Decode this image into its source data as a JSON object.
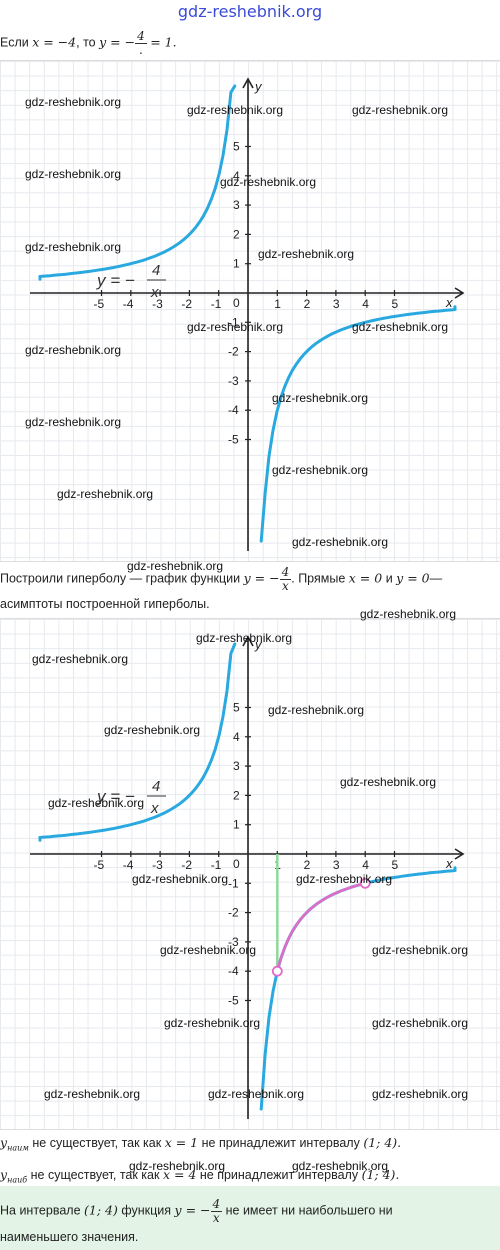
{
  "header_watermark": "gdz-reshebnik.org",
  "watermark_text": "gdz-reshebnik.org",
  "line1": {
    "prefix": "Если",
    "cond": "x = −4",
    "mid": ", то",
    "lhs": "y = −",
    "num": "4",
    "den": ".",
    "rhs": "= 1."
  },
  "text2": {
    "a": "Построили гиперболу — график функции",
    "lhs": "y = −",
    "num": "4",
    "den": "x",
    "b": ". Прямые",
    "m1": "x = 0",
    "c": "и",
    "m2": "y = 0",
    "d": "—",
    "line2": "асимптоты построенной гиперболы."
  },
  "text3": {
    "sub1": "y",
    "sub1_idx": "наим",
    "t1": "не существует, так как",
    "m1": "x = 1",
    "t2": "не принадлежит интервалу",
    "i1": "(1;  4).",
    "sub2": "y",
    "sub2_idx": "наиб",
    "t3": "не существует, так как",
    "m2": "x = 4",
    "t4": "не принадлежит интервалу",
    "i2": "(1;  4)."
  },
  "conclusion": {
    "a": "На интервале",
    "interval": "(1;  4)",
    "b": "функция",
    "lhs": "y = −",
    "num": "4",
    "den": "x",
    "c": "не имеет ни наибольшего ни",
    "line2": "наименьшего значения."
  },
  "graph_labels": {
    "x_axis": "x",
    "y_axis": "y",
    "origin": "0",
    "x_ticks": [
      "-5",
      "-4",
      "-3",
      "-2",
      "-1",
      "1",
      "2",
      "3",
      "4",
      "5"
    ],
    "y_ticks_pos": [
      "1",
      "2",
      "3",
      "4",
      "5"
    ],
    "y_ticks_neg": [
      "-1",
      "-2",
      "-3",
      "-4",
      "-5"
    ],
    "formula_lhs": "y = −",
    "formula_num": "4",
    "formula_den": "x"
  },
  "chart_data": [
    {
      "type": "line",
      "function": "y = -4/x",
      "xlim": [
        -6.5,
        7.5
      ],
      "ylim": [
        -7,
        7
      ],
      "series": [
        {
          "x": [
            -8.5,
            -6,
            -5,
            -4,
            -3,
            -2,
            -1.5,
            -1,
            -0.7,
            -0.45
          ],
          "y": [
            0.47,
            0.67,
            0.8,
            1,
            1.33,
            2,
            2.67,
            4,
            5.7,
            8.9
          ],
          "color": "#29a9df"
        },
        {
          "x": [
            0.45,
            0.7,
            1,
            1.5,
            2,
            3,
            4,
            5,
            6,
            8.5
          ],
          "y": [
            -8.9,
            -5.7,
            -4,
            -2.67,
            -2,
            -1.33,
            -1,
            -0.8,
            -0.67,
            -0.47
          ],
          "color": "#29a9df"
        }
      ]
    },
    {
      "type": "line",
      "function": "y = -4/x",
      "xlim": [
        -6.5,
        7.5
      ],
      "ylim": [
        -7,
        7
      ],
      "series": [
        {
          "x": [
            -8.5,
            -6,
            -5,
            -4,
            -3,
            -2,
            -1.5,
            -1,
            -0.7,
            -0.45
          ],
          "y": [
            0.47,
            0.67,
            0.8,
            1,
            1.33,
            2,
            2.67,
            4,
            5.7,
            8.9
          ],
          "color": "#29a9df"
        },
        {
          "x": [
            0.45,
            0.7,
            1,
            1.5,
            2,
            3,
            4,
            5,
            6,
            8.5
          ],
          "y": [
            -8.9,
            -5.7,
            -4,
            -2.67,
            -2,
            -1.33,
            -1,
            -0.8,
            -0.67,
            -0.47
          ],
          "color": "#29a9df"
        },
        {
          "x": [
            1,
            1.5,
            2,
            2.5,
            3,
            3.5,
            4
          ],
          "y": [
            -4,
            -2.67,
            -2,
            -1.6,
            -1.33,
            -1.14,
            -1
          ],
          "color": "#e06cc8"
        }
      ],
      "highlight": {
        "x": 1,
        "y_from": 0,
        "y_to": -4,
        "color": "#8fd89b"
      },
      "open_points": [
        {
          "x": 1,
          "y": -4
        },
        {
          "x": 4,
          "y": -1
        }
      ]
    }
  ]
}
